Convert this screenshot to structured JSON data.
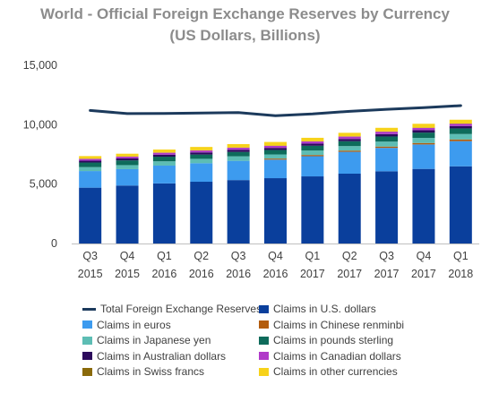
{
  "chart_data": {
    "type": "bar",
    "title": "World - Official Foreign Exchange Reserves by Currency",
    "subtitle": "(US Dollars, Billions)",
    "xlabel": "",
    "ylabel": "",
    "ylim": [
      0,
      15000
    ],
    "yticks": [
      "0",
      "5,000",
      "10,000",
      "15,000"
    ],
    "categories": [
      [
        "Q3",
        "2015"
      ],
      [
        "Q4",
        "2015"
      ],
      [
        "Q1",
        "2016"
      ],
      [
        "Q2",
        "2016"
      ],
      [
        "Q3",
        "2016"
      ],
      [
        "Q4",
        "2016"
      ],
      [
        "Q1",
        "2017"
      ],
      [
        "Q2",
        "2017"
      ],
      [
        "Q3",
        "2017"
      ],
      [
        "Q4",
        "2017"
      ],
      [
        "Q1",
        "2018"
      ]
    ],
    "stacked": true,
    "series": [
      {
        "name": "Claims in U.S. dollars",
        "color": "#0a3f9c",
        "values": [
          4700,
          4880,
          5060,
          5200,
          5340,
          5500,
          5650,
          5880,
          6080,
          6280,
          6500
        ]
      },
      {
        "name": "Claims in euros",
        "color": "#3d9bef",
        "values": [
          1400,
          1380,
          1500,
          1560,
          1620,
          1560,
          1700,
          1840,
          1970,
          2060,
          2120
        ]
      },
      {
        "name": "Claims in Chinese renminbi",
        "color": "#b35c0c",
        "values": [
          0,
          0,
          0,
          0,
          0,
          90,
          100,
          100,
          110,
          120,
          140
        ]
      },
      {
        "name": "Claims in Japanese yen",
        "color": "#5dbdb4",
        "values": [
          330,
          340,
          360,
          370,
          380,
          350,
          380,
          380,
          420,
          430,
          460
        ]
      },
      {
        "name": "Claims in pounds sterling",
        "color": "#0e6b5b",
        "values": [
          390,
          400,
          390,
          360,
          370,
          380,
          400,
          410,
          430,
          450,
          470
        ]
      },
      {
        "name": "Claims in Australian dollars",
        "color": "#2c0a5c",
        "values": [
          150,
          160,
          170,
          180,
          180,
          170,
          180,
          190,
          200,
          200,
          200
        ]
      },
      {
        "name": "Claims in Canadian dollars",
        "color": "#b03ac9",
        "values": [
          150,
          150,
          160,
          160,
          170,
          170,
          180,
          200,
          200,
          190,
          190
        ]
      },
      {
        "name": "Claims in Swiss francs",
        "color": "#8a6a0a",
        "values": [
          20,
          20,
          20,
          20,
          20,
          20,
          20,
          20,
          20,
          20,
          20
        ]
      },
      {
        "name": "Claims in other currencies",
        "color": "#f7d21a",
        "values": [
          220,
          230,
          250,
          280,
          290,
          310,
          290,
          300,
          310,
          330,
          320
        ]
      }
    ],
    "line": {
      "name": "Total Foreign Exchange Reserves",
      "color": "#1c3a5c",
      "values": [
        11200,
        10940,
        10950,
        10990,
        11020,
        10760,
        10910,
        11130,
        11300,
        11440,
        11610
      ]
    },
    "grid": false,
    "legend_position": "bottom"
  }
}
